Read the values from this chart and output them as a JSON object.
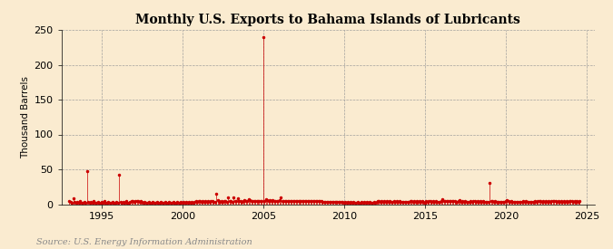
{
  "title": "Monthly U.S. Exports to Bahama Islands of Lubricants",
  "ylabel": "Thousand Barrels",
  "source": "Source: U.S. Energy Information Administration",
  "background_color": "#faebd0",
  "plot_bg_color": "#faebd0",
  "line_color": "#cc0000",
  "xlim": [
    1992.5,
    2025.5
  ],
  "ylim": [
    0,
    250
  ],
  "yticks": [
    0,
    50,
    100,
    150,
    200,
    250
  ],
  "xticks": [
    1995,
    2000,
    2005,
    2010,
    2015,
    2020,
    2025
  ],
  "data_points": [
    [
      1993.0,
      5
    ],
    [
      1993.083,
      3
    ],
    [
      1993.167,
      2
    ],
    [
      1993.25,
      8
    ],
    [
      1993.333,
      3
    ],
    [
      1993.417,
      2
    ],
    [
      1993.5,
      3
    ],
    [
      1993.583,
      2
    ],
    [
      1993.667,
      4
    ],
    [
      1993.75,
      2
    ],
    [
      1993.833,
      2
    ],
    [
      1993.917,
      3
    ],
    [
      1994.0,
      2
    ],
    [
      1994.083,
      47
    ],
    [
      1994.167,
      3
    ],
    [
      1994.25,
      2
    ],
    [
      1994.333,
      3
    ],
    [
      1994.417,
      2
    ],
    [
      1994.5,
      4
    ],
    [
      1994.583,
      2
    ],
    [
      1994.667,
      2
    ],
    [
      1994.75,
      3
    ],
    [
      1994.833,
      2
    ],
    [
      1994.917,
      2
    ],
    [
      1995.0,
      3
    ],
    [
      1995.083,
      2
    ],
    [
      1995.167,
      4
    ],
    [
      1995.25,
      2
    ],
    [
      1995.333,
      2
    ],
    [
      1995.417,
      3
    ],
    [
      1995.5,
      2
    ],
    [
      1995.583,
      2
    ],
    [
      1995.667,
      3
    ],
    [
      1995.75,
      2
    ],
    [
      1995.833,
      2
    ],
    [
      1995.917,
      3
    ],
    [
      1996.0,
      2
    ],
    [
      1996.083,
      42
    ],
    [
      1996.167,
      3
    ],
    [
      1996.25,
      2
    ],
    [
      1996.333,
      3
    ],
    [
      1996.417,
      2
    ],
    [
      1996.5,
      4
    ],
    [
      1996.583,
      2
    ],
    [
      1996.667,
      2
    ],
    [
      1996.75,
      3
    ],
    [
      1996.833,
      5
    ],
    [
      1996.917,
      4
    ],
    [
      1997.0,
      3
    ],
    [
      1997.083,
      5
    ],
    [
      1997.167,
      4
    ],
    [
      1997.25,
      5
    ],
    [
      1997.333,
      3
    ],
    [
      1997.417,
      4
    ],
    [
      1997.5,
      3
    ],
    [
      1997.583,
      2
    ],
    [
      1997.667,
      3
    ],
    [
      1997.75,
      2
    ],
    [
      1997.833,
      2
    ],
    [
      1997.917,
      3
    ],
    [
      1998.0,
      2
    ],
    [
      1998.083,
      2
    ],
    [
      1998.167,
      3
    ],
    [
      1998.25,
      2
    ],
    [
      1998.333,
      2
    ],
    [
      1998.417,
      3
    ],
    [
      1998.5,
      2
    ],
    [
      1998.583,
      2
    ],
    [
      1998.667,
      3
    ],
    [
      1998.75,
      2
    ],
    [
      1998.833,
      2
    ],
    [
      1998.917,
      3
    ],
    [
      1999.0,
      2
    ],
    [
      1999.083,
      2
    ],
    [
      1999.167,
      3
    ],
    [
      1999.25,
      2
    ],
    [
      1999.333,
      2
    ],
    [
      1999.417,
      3
    ],
    [
      1999.5,
      2
    ],
    [
      1999.583,
      2
    ],
    [
      1999.667,
      3
    ],
    [
      1999.75,
      2
    ],
    [
      1999.833,
      2
    ],
    [
      1999.917,
      3
    ],
    [
      2000.0,
      2
    ],
    [
      2000.083,
      3
    ],
    [
      2000.167,
      2
    ],
    [
      2000.25,
      3
    ],
    [
      2000.333,
      2
    ],
    [
      2000.417,
      3
    ],
    [
      2000.5,
      2
    ],
    [
      2000.583,
      3
    ],
    [
      2000.667,
      2
    ],
    [
      2000.75,
      3
    ],
    [
      2000.833,
      4
    ],
    [
      2000.917,
      3
    ],
    [
      2001.0,
      4
    ],
    [
      2001.083,
      5
    ],
    [
      2001.167,
      3
    ],
    [
      2001.25,
      4
    ],
    [
      2001.333,
      3
    ],
    [
      2001.417,
      4
    ],
    [
      2001.5,
      3
    ],
    [
      2001.583,
      4
    ],
    [
      2001.667,
      3
    ],
    [
      2001.75,
      4
    ],
    [
      2001.833,
      5
    ],
    [
      2001.917,
      3
    ],
    [
      2002.0,
      3
    ],
    [
      2002.083,
      15
    ],
    [
      2002.167,
      6
    ],
    [
      2002.25,
      4
    ],
    [
      2002.333,
      3
    ],
    [
      2002.417,
      4
    ],
    [
      2002.5,
      3
    ],
    [
      2002.583,
      5
    ],
    [
      2002.667,
      4
    ],
    [
      2002.75,
      3
    ],
    [
      2002.833,
      10
    ],
    [
      2002.917,
      5
    ],
    [
      2003.0,
      4
    ],
    [
      2003.083,
      3
    ],
    [
      2003.167,
      10
    ],
    [
      2003.25,
      5
    ],
    [
      2003.333,
      4
    ],
    [
      2003.417,
      8
    ],
    [
      2003.5,
      4
    ],
    [
      2003.583,
      4
    ],
    [
      2003.667,
      3
    ],
    [
      2003.75,
      5
    ],
    [
      2003.833,
      6
    ],
    [
      2003.917,
      5
    ],
    [
      2004.0,
      5
    ],
    [
      2004.083,
      7
    ],
    [
      2004.167,
      6
    ],
    [
      2004.25,
      5
    ],
    [
      2004.333,
      4
    ],
    [
      2004.417,
      5
    ],
    [
      2004.5,
      4
    ],
    [
      2004.583,
      5
    ],
    [
      2004.667,
      4
    ],
    [
      2004.75,
      5
    ],
    [
      2004.833,
      5
    ],
    [
      2004.917,
      4
    ],
    [
      2005.0,
      240
    ],
    [
      2005.083,
      5
    ],
    [
      2005.167,
      7
    ],
    [
      2005.25,
      6
    ],
    [
      2005.333,
      4
    ],
    [
      2005.417,
      6
    ],
    [
      2005.5,
      5
    ],
    [
      2005.583,
      6
    ],
    [
      2005.667,
      4
    ],
    [
      2005.75,
      5
    ],
    [
      2005.833,
      4
    ],
    [
      2005.917,
      5
    ],
    [
      2006.0,
      6
    ],
    [
      2006.083,
      10
    ],
    [
      2006.167,
      5
    ],
    [
      2006.25,
      4
    ],
    [
      2006.333,
      5
    ],
    [
      2006.417,
      4
    ],
    [
      2006.5,
      5
    ],
    [
      2006.583,
      4
    ],
    [
      2006.667,
      5
    ],
    [
      2006.75,
      4
    ],
    [
      2006.833,
      5
    ],
    [
      2006.917,
      4
    ],
    [
      2007.0,
      5
    ],
    [
      2007.083,
      4
    ],
    [
      2007.167,
      5
    ],
    [
      2007.25,
      4
    ],
    [
      2007.333,
      5
    ],
    [
      2007.417,
      4
    ],
    [
      2007.5,
      5
    ],
    [
      2007.583,
      4
    ],
    [
      2007.667,
      5
    ],
    [
      2007.75,
      4
    ],
    [
      2007.833,
      5
    ],
    [
      2007.917,
      4
    ],
    [
      2008.0,
      4
    ],
    [
      2008.083,
      5
    ],
    [
      2008.167,
      4
    ],
    [
      2008.25,
      5
    ],
    [
      2008.333,
      4
    ],
    [
      2008.417,
      5
    ],
    [
      2008.5,
      4
    ],
    [
      2008.583,
      4
    ],
    [
      2008.667,
      3
    ],
    [
      2008.75,
      3
    ],
    [
      2008.833,
      3
    ],
    [
      2008.917,
      3
    ],
    [
      2009.0,
      3
    ],
    [
      2009.083,
      3
    ],
    [
      2009.167,
      3
    ],
    [
      2009.25,
      3
    ],
    [
      2009.333,
      3
    ],
    [
      2009.417,
      3
    ],
    [
      2009.5,
      3
    ],
    [
      2009.583,
      3
    ],
    [
      2009.667,
      3
    ],
    [
      2009.75,
      3
    ],
    [
      2009.833,
      3
    ],
    [
      2009.917,
      3
    ],
    [
      2010.0,
      2
    ],
    [
      2010.083,
      3
    ],
    [
      2010.167,
      2
    ],
    [
      2010.25,
      3
    ],
    [
      2010.333,
      2
    ],
    [
      2010.417,
      3
    ],
    [
      2010.5,
      2
    ],
    [
      2010.583,
      3
    ],
    [
      2010.667,
      2
    ],
    [
      2010.75,
      2
    ],
    [
      2010.833,
      3
    ],
    [
      2010.917,
      2
    ],
    [
      2011.0,
      2
    ],
    [
      2011.083,
      3
    ],
    [
      2011.167,
      2
    ],
    [
      2011.25,
      3
    ],
    [
      2011.333,
      2
    ],
    [
      2011.417,
      3
    ],
    [
      2011.5,
      2
    ],
    [
      2011.583,
      3
    ],
    [
      2011.667,
      2
    ],
    [
      2011.75,
      2
    ],
    [
      2011.833,
      3
    ],
    [
      2011.917,
      2
    ],
    [
      2012.0,
      3
    ],
    [
      2012.083,
      5
    ],
    [
      2012.167,
      4
    ],
    [
      2012.25,
      3
    ],
    [
      2012.333,
      4
    ],
    [
      2012.417,
      3
    ],
    [
      2012.5,
      4
    ],
    [
      2012.583,
      3
    ],
    [
      2012.667,
      4
    ],
    [
      2012.75,
      3
    ],
    [
      2012.833,
      4
    ],
    [
      2012.917,
      3
    ],
    [
      2013.0,
      3
    ],
    [
      2013.083,
      4
    ],
    [
      2013.167,
      3
    ],
    [
      2013.25,
      4
    ],
    [
      2013.333,
      3
    ],
    [
      2013.417,
      4
    ],
    [
      2013.5,
      3
    ],
    [
      2013.583,
      3
    ],
    [
      2013.667,
      3
    ],
    [
      2013.75,
      3
    ],
    [
      2013.833,
      3
    ],
    [
      2013.917,
      3
    ],
    [
      2014.0,
      3
    ],
    [
      2014.083,
      5
    ],
    [
      2014.167,
      4
    ],
    [
      2014.25,
      3
    ],
    [
      2014.333,
      4
    ],
    [
      2014.417,
      3
    ],
    [
      2014.5,
      4
    ],
    [
      2014.583,
      3
    ],
    [
      2014.667,
      4
    ],
    [
      2014.75,
      3
    ],
    [
      2014.833,
      4
    ],
    [
      2014.917,
      3
    ],
    [
      2015.0,
      2
    ],
    [
      2015.083,
      4
    ],
    [
      2015.167,
      3
    ],
    [
      2015.25,
      4
    ],
    [
      2015.333,
      5
    ],
    [
      2015.417,
      3
    ],
    [
      2015.5,
      4
    ],
    [
      2015.583,
      3
    ],
    [
      2015.667,
      4
    ],
    [
      2015.75,
      3
    ],
    [
      2015.833,
      3
    ],
    [
      2015.917,
      3
    ],
    [
      2016.0,
      4
    ],
    [
      2016.083,
      7
    ],
    [
      2016.167,
      5
    ],
    [
      2016.25,
      4
    ],
    [
      2016.333,
      5
    ],
    [
      2016.417,
      4
    ],
    [
      2016.5,
      5
    ],
    [
      2016.583,
      4
    ],
    [
      2016.667,
      5
    ],
    [
      2016.75,
      4
    ],
    [
      2016.833,
      4
    ],
    [
      2016.917,
      3
    ],
    [
      2017.0,
      3
    ],
    [
      2017.083,
      4
    ],
    [
      2017.167,
      6
    ],
    [
      2017.25,
      3
    ],
    [
      2017.333,
      4
    ],
    [
      2017.417,
      3
    ],
    [
      2017.5,
      4
    ],
    [
      2017.583,
      3
    ],
    [
      2017.667,
      3
    ],
    [
      2017.75,
      3
    ],
    [
      2017.833,
      4
    ],
    [
      2017.917,
      3
    ],
    [
      2018.0,
      4
    ],
    [
      2018.083,
      5
    ],
    [
      2018.167,
      3
    ],
    [
      2018.25,
      4
    ],
    [
      2018.333,
      3
    ],
    [
      2018.417,
      4
    ],
    [
      2018.5,
      3
    ],
    [
      2018.583,
      4
    ],
    [
      2018.667,
      3
    ],
    [
      2018.75,
      3
    ],
    [
      2018.833,
      3
    ],
    [
      2018.917,
      3
    ],
    [
      2019.0,
      30
    ],
    [
      2019.083,
      4
    ],
    [
      2019.167,
      5
    ],
    [
      2019.25,
      3
    ],
    [
      2019.333,
      4
    ],
    [
      2019.417,
      3
    ],
    [
      2019.5,
      3
    ],
    [
      2019.583,
      3
    ],
    [
      2019.667,
      3
    ],
    [
      2019.75,
      3
    ],
    [
      2019.833,
      3
    ],
    [
      2019.917,
      3
    ],
    [
      2020.0,
      4
    ],
    [
      2020.083,
      6
    ],
    [
      2020.167,
      4
    ],
    [
      2020.25,
      3
    ],
    [
      2020.333,
      4
    ],
    [
      2020.417,
      3
    ],
    [
      2020.5,
      3
    ],
    [
      2020.583,
      3
    ],
    [
      2020.667,
      3
    ],
    [
      2020.75,
      3
    ],
    [
      2020.833,
      3
    ],
    [
      2020.917,
      3
    ],
    [
      2021.0,
      3
    ],
    [
      2021.083,
      4
    ],
    [
      2021.167,
      3
    ],
    [
      2021.25,
      4
    ],
    [
      2021.333,
      3
    ],
    [
      2021.417,
      3
    ],
    [
      2021.5,
      3
    ],
    [
      2021.583,
      3
    ],
    [
      2021.667,
      3
    ],
    [
      2021.75,
      3
    ],
    [
      2021.833,
      4
    ],
    [
      2021.917,
      3
    ],
    [
      2022.0,
      4
    ],
    [
      2022.083,
      5
    ],
    [
      2022.167,
      4
    ],
    [
      2022.25,
      3
    ],
    [
      2022.333,
      4
    ],
    [
      2022.417,
      3
    ],
    [
      2022.5,
      4
    ],
    [
      2022.583,
      3
    ],
    [
      2022.667,
      4
    ],
    [
      2022.75,
      3
    ],
    [
      2022.833,
      5
    ],
    [
      2022.917,
      4
    ],
    [
      2023.0,
      5
    ],
    [
      2023.083,
      4
    ],
    [
      2023.167,
      3
    ],
    [
      2023.25,
      4
    ],
    [
      2023.333,
      3
    ],
    [
      2023.417,
      4
    ],
    [
      2023.5,
      3
    ],
    [
      2023.583,
      4
    ],
    [
      2023.667,
      3
    ],
    [
      2023.75,
      4
    ],
    [
      2023.833,
      3
    ],
    [
      2023.917,
      4
    ],
    [
      2024.0,
      5
    ],
    [
      2024.083,
      4
    ],
    [
      2024.167,
      3
    ],
    [
      2024.25,
      4
    ],
    [
      2024.333,
      3
    ],
    [
      2024.417,
      4
    ],
    [
      2024.5,
      3
    ],
    [
      2024.583,
      4
    ]
  ]
}
